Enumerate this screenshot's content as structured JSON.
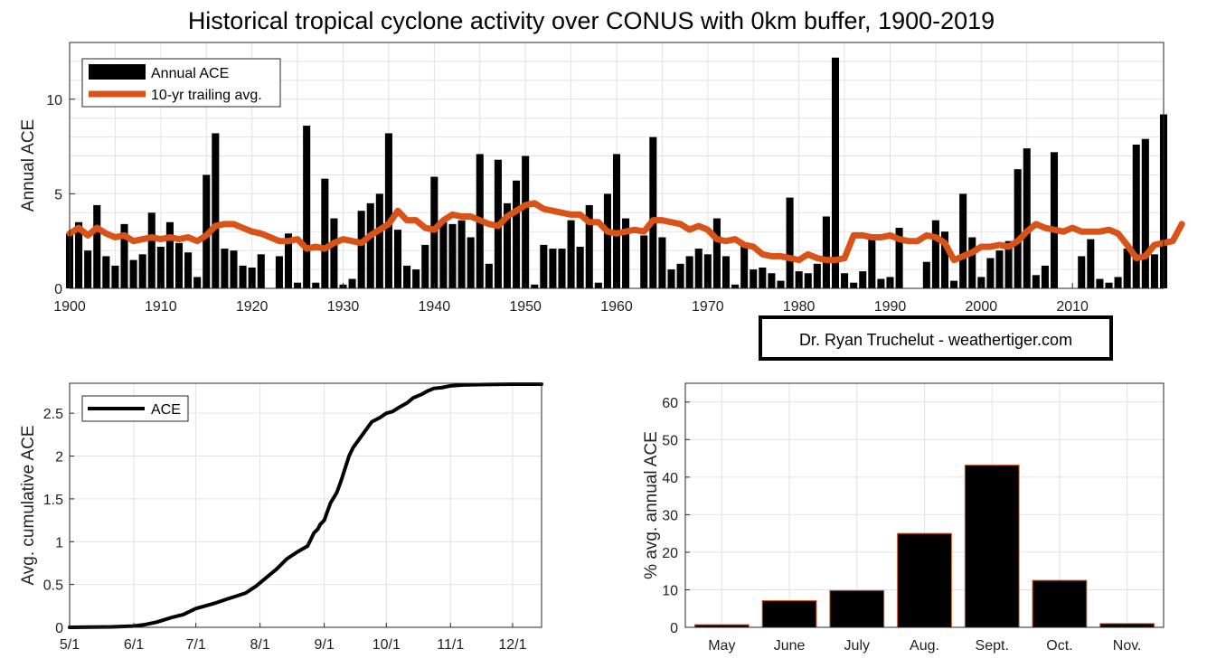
{
  "title": "Historical tropical cyclone activity over CONUS with 0km buffer, 1900-2019",
  "credit": "Dr. Ryan Truchelut - weathertiger.com",
  "colors": {
    "bar": "#000000",
    "avg_line": "#D95319",
    "month_bar_edge": "#D95319",
    "grid": "#e2e2e2"
  },
  "chart_data": [
    {
      "type": "bar",
      "name": "annual-ace",
      "ylabel": "Annual ACE",
      "xlim": [
        1900,
        2020
      ],
      "ylim": [
        0,
        13
      ],
      "xticks": [
        1900,
        1910,
        1920,
        1930,
        1940,
        1950,
        1960,
        1970,
        1980,
        1990,
        2000,
        2010
      ],
      "yticks": [
        0,
        5,
        10
      ],
      "legend": {
        "position": "top-left",
        "entries": [
          "Annual ACE",
          "10-yr trailing avg."
        ]
      },
      "x_start": 1900,
      "series": [
        {
          "name": "Annual ACE",
          "values": [
            2.9,
            3.5,
            2.0,
            4.4,
            1.7,
            1.2,
            3.4,
            1.5,
            1.8,
            4.0,
            2.2,
            3.5,
            2.4,
            1.9,
            0.6,
            6.0,
            8.2,
            2.1,
            2.0,
            1.2,
            1.1,
            1.8,
            0.0,
            1.7,
            2.9,
            0.3,
            8.6,
            0.3,
            5.8,
            3.7,
            0.2,
            0.5,
            4.1,
            4.5,
            5.0,
            8.2,
            3.1,
            1.2,
            1.0,
            2.3,
            5.9,
            3.5,
            3.4,
            3.6,
            2.7,
            7.1,
            1.3,
            6.8,
            4.5,
            5.7,
            7.0,
            0.2,
            2.3,
            2.1,
            2.1,
            3.6,
            2.2,
            4.4,
            0.3,
            5.0,
            7.1,
            3.7,
            0.0,
            2.8,
            8.0,
            2.7,
            1.0,
            1.3,
            1.7,
            2.1,
            1.8,
            3.7,
            1.7,
            0.2,
            2.3,
            1.0,
            1.1,
            0.8,
            0.4,
            4.8,
            0.9,
            0.8,
            1.3,
            3.8,
            12.2,
            0.8,
            0.3,
            0.9,
            2.8,
            0.5,
            0.6,
            3.2,
            0.0,
            0.0,
            1.4,
            3.6,
            3.0,
            0.4,
            5.0,
            2.7,
            0.6,
            1.6,
            2.0,
            2.5,
            6.3,
            7.4,
            0.7,
            1.2,
            7.2,
            0.0,
            0.0,
            1.7,
            2.6,
            0.5,
            0.3,
            0.6,
            2.1,
            7.6,
            7.9,
            1.8,
            9.2
          ]
        },
        {
          "name": "10-yr trailing avg.",
          "type": "line",
          "values": [
            2.9,
            3.2,
            2.8,
            3.2,
            2.9,
            2.7,
            2.8,
            2.5,
            2.6,
            2.7,
            2.6,
            2.7,
            2.6,
            2.7,
            2.5,
            2.8,
            3.3,
            3.4,
            3.4,
            3.2,
            3.0,
            2.9,
            2.7,
            2.5,
            2.5,
            2.6,
            2.1,
            2.2,
            2.1,
            2.4,
            2.6,
            2.5,
            2.4,
            2.8,
            3.1,
            3.4,
            4.1,
            3.6,
            3.6,
            3.2,
            3.1,
            3.6,
            3.9,
            3.8,
            3.8,
            3.6,
            3.4,
            3.3,
            3.8,
            4.1,
            4.4,
            4.5,
            4.2,
            4.1,
            4.0,
            3.9,
            3.9,
            3.5,
            3.5,
            3.0,
            2.9,
            3.0,
            3.1,
            3.0,
            3.6,
            3.6,
            3.5,
            3.4,
            3.1,
            3.3,
            3.1,
            2.6,
            2.5,
            2.6,
            2.3,
            2.2,
            1.8,
            1.7,
            1.7,
            1.6,
            1.5,
            1.8,
            1.6,
            1.5,
            1.5,
            1.6,
            2.8,
            2.8,
            2.7,
            2.7,
            2.8,
            2.6,
            2.5,
            2.5,
            2.8,
            2.7,
            2.4,
            1.5,
            1.7,
            1.9,
            2.2,
            2.2,
            2.3,
            2.2,
            2.5,
            3.0,
            3.4,
            3.2,
            3.1,
            3.0,
            3.2,
            3.0,
            3.0,
            3.0,
            3.1,
            2.9,
            2.3,
            1.6,
            1.7,
            2.3,
            2.4,
            2.5,
            3.4
          ]
        }
      ]
    },
    {
      "type": "line",
      "name": "cumulative-ace",
      "ylabel": "Avg. cumulative ACE",
      "xlim_days": [
        0,
        228
      ],
      "ylim": [
        0,
        2.85
      ],
      "xticks": [
        {
          "label": "5/1",
          "day": 0
        },
        {
          "label": "6/1",
          "day": 31
        },
        {
          "label": "7/1",
          "day": 61
        },
        {
          "label": "8/1",
          "day": 92
        },
        {
          "label": "9/1",
          "day": 123
        },
        {
          "label": "10/1",
          "day": 153
        },
        {
          "label": "11/1",
          "day": 184
        },
        {
          "label": "12/1",
          "day": 214
        }
      ],
      "yticks": [
        0,
        0.5,
        1,
        1.5,
        2,
        2.5
      ],
      "legend": {
        "position": "top-left",
        "entries": [
          "ACE"
        ]
      },
      "x_days": [
        0,
        10,
        20,
        31,
        36,
        42,
        46,
        50,
        55,
        61,
        64,
        70,
        76,
        80,
        85,
        90,
        95,
        100,
        105,
        110,
        115,
        118,
        120,
        121,
        123,
        126,
        129,
        131,
        133,
        135,
        137,
        140,
        143,
        146,
        150,
        153,
        156,
        160,
        163,
        166,
        170,
        173,
        176,
        180,
        184,
        190,
        200,
        214,
        228
      ],
      "y": [
        0,
        0.002,
        0.005,
        0.015,
        0.03,
        0.06,
        0.09,
        0.12,
        0.15,
        0.22,
        0.24,
        0.28,
        0.33,
        0.36,
        0.4,
        0.48,
        0.58,
        0.68,
        0.8,
        0.88,
        0.95,
        1.1,
        1.15,
        1.2,
        1.25,
        1.45,
        1.57,
        1.7,
        1.85,
        2.0,
        2.1,
        2.2,
        2.3,
        2.4,
        2.45,
        2.5,
        2.52,
        2.58,
        2.62,
        2.68,
        2.72,
        2.76,
        2.79,
        2.8,
        2.82,
        2.83,
        2.835,
        2.84,
        2.84
      ]
    },
    {
      "type": "bar",
      "name": "monthly-share",
      "ylabel": "% avg. annual ACE",
      "categories": [
        "May",
        "June",
        "July",
        "Aug.",
        "Sept.",
        "Oct.",
        "Nov."
      ],
      "values": [
        0.7,
        7.1,
        9.8,
        25.0,
        43.2,
        12.5,
        1.0
      ],
      "ylim": [
        0,
        65
      ],
      "yticks": [
        0,
        10,
        20,
        30,
        40,
        50,
        60
      ]
    }
  ]
}
